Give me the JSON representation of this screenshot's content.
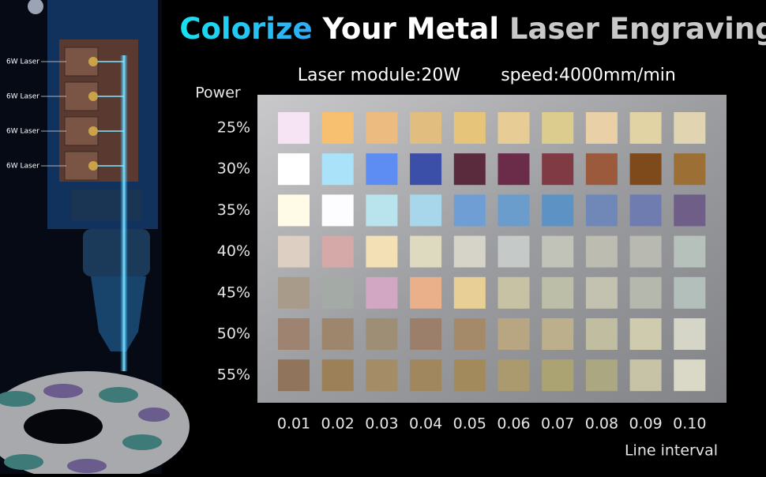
{
  "title": {
    "colored": "Colorize",
    "white": "Your Metal",
    "gray": "Laser Engraving"
  },
  "specs": [
    "Laser module:20W",
    "speed:4000mm/min"
  ],
  "row_axis_label": "Power",
  "col_axis_label": "Line interval",
  "rows": [
    "25%",
    "30%",
    "35%",
    "40%",
    "45%",
    "50%",
    "55%"
  ],
  "columns": [
    "0.01",
    "0.02",
    "0.03",
    "0.04",
    "0.05",
    "0.06",
    "0.07",
    "0.08",
    "0.09",
    "0.10"
  ],
  "swatches": [
    [
      "#f6e4f4",
      "#f7c071",
      "#ecbb7f",
      "#e2bd80",
      "#e6c57a",
      "#e7cd95",
      "#dccd8e",
      "#e9d0a6",
      "#e2d3a4",
      "#e0d5b0"
    ],
    [
      "#ffffff",
      "#a9e2f9",
      "#5d8cf2",
      "#3c4fa8",
      "#5a2b3d",
      "#6b2c4a",
      "#7f3a44",
      "#9b5a3c",
      "#7e4a1c",
      "#9c7035"
    ],
    [
      "#fffbe6",
      "#fdfdff",
      "#b9e4ee",
      "#a8d7ec",
      "#6e9ed4",
      "#6a9ccc",
      "#5d92c4",
      "#6f88b8",
      "#6f7cb0",
      "#6e5e88"
    ],
    [
      "#ddcfc2",
      "#d5a9a7",
      "#f3e0b5",
      "#dedac0",
      "#d6d4c8",
      "#c5c9c7",
      "#c1c3b8",
      "#bcbcb0",
      "#b8bab1",
      "#b6c1bc"
    ],
    [
      "#a89b8a",
      "#a4aba7",
      "#d1a7c3",
      "#e9b08a",
      "#e7cf96",
      "#c8c2a5",
      "#bcbea8",
      "#c3c2b0",
      "#b5b8ad",
      "#b3bfbb"
    ],
    [
      "#9e8370",
      "#9e866c",
      "#9f8e76",
      "#9c7f6b",
      "#a58a6a",
      "#b8a683",
      "#bbb08b",
      "#c1bda0",
      "#cecbaf",
      "#d6d6c8"
    ],
    [
      "#91745c",
      "#9b8058",
      "#a48c66",
      "#a1875e",
      "#a28a5d",
      "#aa9a6d",
      "#aca372",
      "#aaa781",
      "#c6c3a6",
      "#dad9c8"
    ]
  ],
  "laser_labels": [
    "6W Laser",
    "6W Laser",
    "6W Laser",
    "6W Laser"
  ]
}
